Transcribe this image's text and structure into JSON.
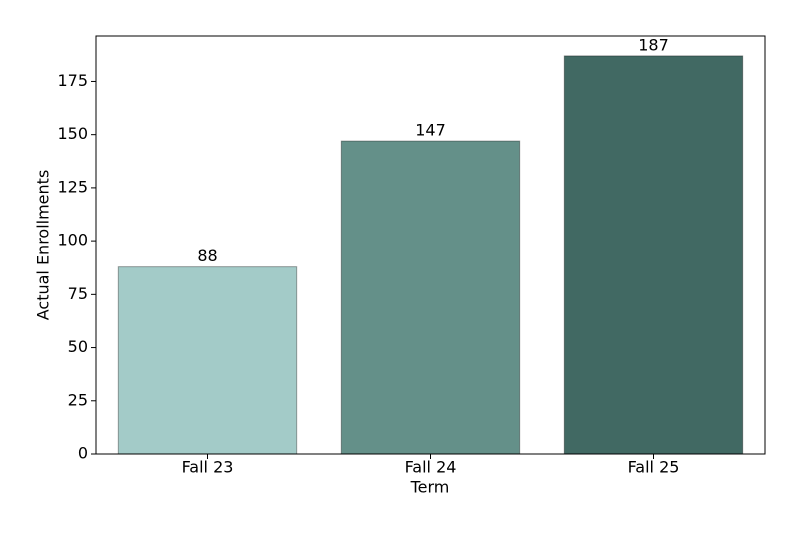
{
  "chart_data": {
    "type": "bar",
    "categories": [
      "Fall 23",
      "Fall 24",
      "Fall 25"
    ],
    "values": [
      88,
      147,
      187
    ],
    "colors": [
      "#a3cbc8",
      "#649089",
      "#416963"
    ],
    "xlabel": "Term",
    "ylabel": "Actual Enrollments",
    "ylim": [
      0,
      196.35
    ],
    "yticks": [
      0,
      25,
      50,
      75,
      100,
      125,
      150,
      175
    ],
    "grid": false
  }
}
